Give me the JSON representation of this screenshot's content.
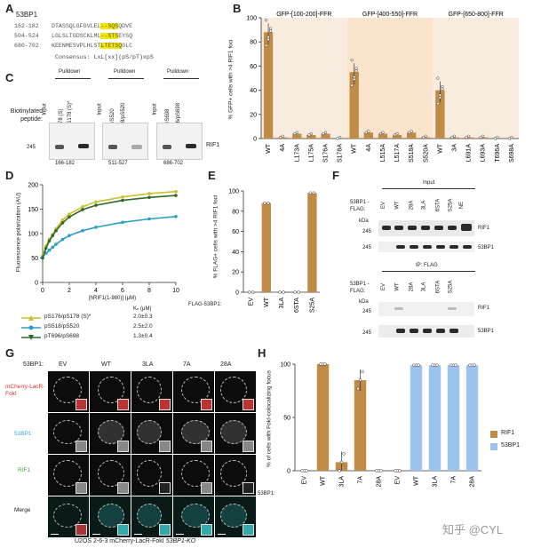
{
  "panelA": {
    "label": "A",
    "protein": "53BP1",
    "rows": [
      {
        "range": "162-182",
        "pre": "DTASSQLGFGVLEL",
        "hl": "--SQS",
        "post": "QDVE"
      },
      {
        "range": "504-524",
        "pre": "LGLSLTGDSCKLML",
        "hl": "--STS",
        "post": "EYSQ"
      },
      {
        "range": "680-702",
        "pre": "KEENMESVPLHLST",
        "hl": "LTETSQ",
        "post": "GLC"
      }
    ],
    "consensus": "Consensus: LxL[xx](pS/pT)xpS"
  },
  "panelB": {
    "label": "B",
    "groups": [
      "GFP-[100-200]-FFR",
      "GFP-[400-550]-FFR",
      "GFP-[650-800]-FFR"
    ],
    "ylabel": "% GFP+ cells with >4 RIF1 foci"
  },
  "panelC": {
    "label": "C",
    "pulldown": "Pulldown",
    "side_label": "Biotinylated peptide:",
    "input": "Input",
    "lanes": [
      "S176/S178 (S)",
      "pS176/pS178 (S)*",
      "S518/S520",
      "pS518/pS520",
      "T696/S698",
      "pT696/pS698"
    ],
    "ranges": [
      "166-182",
      "511-527",
      "686-702"
    ],
    "band": "RIF1",
    "mw": "245"
  },
  "panelD": {
    "label": "D",
    "ylabel": "Fluorescence polarization (AU)",
    "xlabel": "[hRIF1(1-980)] (μM)",
    "kd_header": "Kₙ (μM)",
    "legend": [
      {
        "name": "pS176/pS178 (S)*",
        "kd": "2.0±0.3",
        "color": "#c9c12a"
      },
      {
        "name": "pS518/pS520",
        "kd": "2.5±2.0",
        "color": "#2a9fc4"
      },
      {
        "name": "pT696/pS698",
        "kd": "1.3±0.4",
        "color": "#2f6a2a"
      }
    ]
  },
  "panelE": {
    "label": "E",
    "ylabel": "% FLAG+ cells with >4 RIF1 foci",
    "xprefix": "FLAG-53BP1:"
  },
  "panelF": {
    "label": "F",
    "side": "53BP1 -FLAG:",
    "input": "Input",
    "ip": "IP: FLAG",
    "kda": "kDa",
    "lanes": [
      "EV",
      "WT",
      "28A",
      "3LA",
      "6STA",
      "S25A",
      "NE"
    ],
    "bands": [
      "RIF1",
      "53BP1"
    ],
    "mw": [
      "245",
      "245"
    ]
  },
  "panelG": {
    "label": "G",
    "header": "53BP1:",
    "cols": [
      "EV",
      "WT",
      "3LA",
      "7A",
      "28A"
    ],
    "rows": [
      {
        "name": "mCherry-LacR-FokI",
        "color": "#d8332a"
      },
      {
        "name": "53BP1",
        "color": "#3aa5d8"
      },
      {
        "name": "RIF1",
        "color": "#3ea43e"
      },
      {
        "name": "Merge",
        "color": "#222222"
      }
    ],
    "caption": "U2OS 2-6-3 mCherry-LacR-FokI",
    "caption_italic": "53BP1-KO"
  },
  "panelH": {
    "label": "H",
    "ylabel": "% of cells with FokI-colocalizing focus",
    "xprefix": "53BP1:",
    "legend": [
      {
        "name": "RIF1",
        "color": "#c08a47"
      },
      {
        "name": "53BP1",
        "color": "#9cc3ee"
      }
    ]
  },
  "watermark": "知乎 @CYL",
  "chart_data": [
    {
      "type": "bar",
      "title": "",
      "categories": [
        "WT",
        "4A",
        "L173A",
        "L175A",
        "S176A",
        "S178A",
        "WT",
        "4A",
        "L515A",
        "L517A",
        "S518A",
        "S520A",
        "WT",
        "3A",
        "L691A",
        "L693A",
        "T696A",
        "S698A"
      ],
      "groups": [
        "GFP-[100-200]-FFR",
        "GFP-[400-550]-FFR",
        "GFP-[650-800]-FFR"
      ],
      "values": [
        88,
        1,
        4,
        3,
        4,
        0,
        55,
        5,
        4,
        3,
        5,
        1,
        40,
        1,
        1,
        1,
        0,
        0
      ],
      "ylabel": "% GFP+ cells with >4 RIF1 foci",
      "ylim": [
        0,
        100
      ],
      "yticks": [
        0,
        20,
        40,
        60,
        80,
        100
      ]
    },
    {
      "type": "line",
      "x_label": "[hRIF1(1-980)] (μM)",
      "ylabel": "Fluorescence polarization (AU)",
      "xlim": [
        0,
        10
      ],
      "ylim": [
        0,
        200
      ],
      "xticks": [
        0,
        2,
        4,
        6,
        8,
        10
      ],
      "yticks": [
        0,
        50,
        100,
        150,
        200
      ],
      "series": [
        {
          "name": "pS176/pS178 (S)*",
          "x": [
            0,
            0.25,
            0.5,
            0.75,
            1,
            1.5,
            2,
            3,
            4,
            6,
            8,
            10
          ],
          "y": [
            55,
            75,
            88,
            98,
            110,
            128,
            140,
            155,
            165,
            175,
            182,
            186
          ]
        },
        {
          "name": "pS518/pS520",
          "x": [
            0,
            0.25,
            0.5,
            0.75,
            1,
            1.5,
            2,
            3,
            4,
            6,
            8,
            10
          ],
          "y": [
            52,
            60,
            66,
            72,
            78,
            88,
            96,
            106,
            113,
            123,
            130,
            135
          ]
        },
        {
          "name": "pT696/pS698",
          "x": [
            0,
            0.25,
            0.5,
            0.75,
            1,
            1.5,
            2,
            3,
            4,
            6,
            8,
            10
          ],
          "y": [
            50,
            70,
            85,
            96,
            106,
            122,
            134,
            149,
            158,
            168,
            174,
            178
          ]
        }
      ]
    },
    {
      "type": "bar",
      "categories": [
        "EV",
        "WT",
        "3LA",
        "6STA",
        "S25A"
      ],
      "values": [
        0,
        88,
        0,
        0,
        98
      ],
      "ylabel": "% FLAG+ cells with >4 RIF1 foci",
      "ylim": [
        0,
        100
      ],
      "yticks": [
        0,
        20,
        40,
        60,
        80,
        100
      ]
    },
    {
      "type": "bar",
      "categories": [
        "EV",
        "WT",
        "3LA",
        "7A",
        "28A",
        "EV",
        "WT",
        "3LA",
        "7A",
        "28A"
      ],
      "series": [
        {
          "name": "RIF1",
          "values": [
            0,
            100,
            8,
            85,
            0,
            null,
            null,
            null,
            null,
            null
          ]
        },
        {
          "name": "53BP1",
          "values": [
            null,
            null,
            null,
            null,
            null,
            0,
            99,
            99,
            99,
            99
          ]
        }
      ],
      "ylabel": "% of cells with FokI-colocalizing focus",
      "ylim": [
        0,
        100
      ],
      "yticks": [
        0,
        50,
        100
      ]
    }
  ]
}
